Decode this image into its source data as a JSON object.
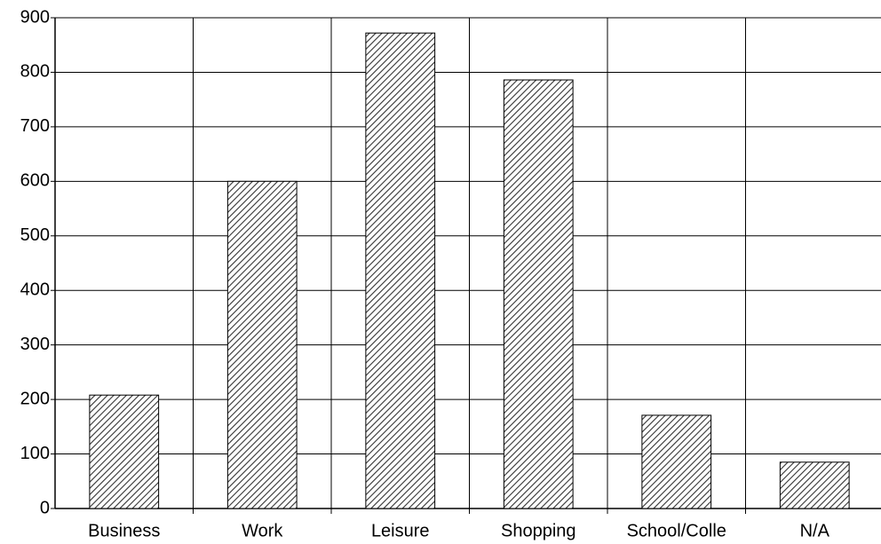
{
  "chart_data": {
    "type": "bar",
    "categories": [
      "Business",
      "Work",
      "Leisure",
      "Shopping",
      "School/Colle",
      "N/A"
    ],
    "values": [
      208,
      600,
      872,
      786,
      171,
      85
    ],
    "color": "#000000",
    "ylim": [
      0,
      900
    ],
    "yticks": [
      0,
      100,
      200,
      300,
      400,
      500,
      600,
      700,
      800,
      900
    ],
    "grid": true
  }
}
